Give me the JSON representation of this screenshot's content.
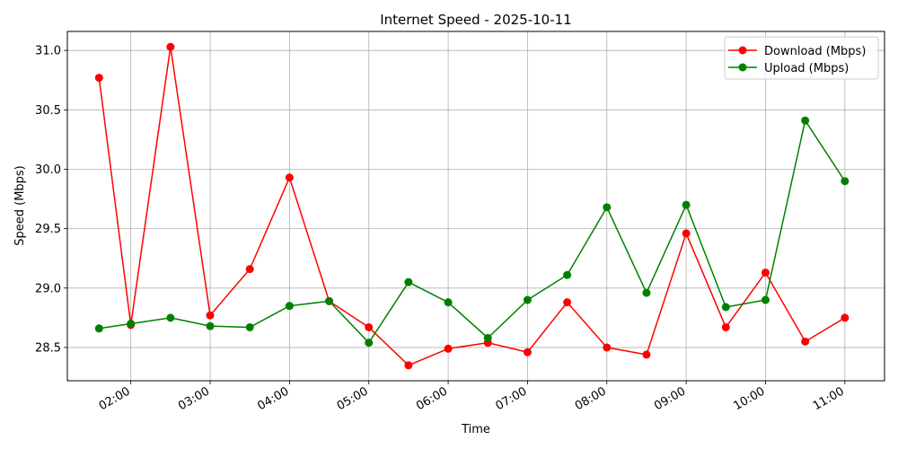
{
  "chart_data": {
    "type": "line",
    "title": "Internet Speed - 2025-10-11",
    "xlabel": "Time",
    "ylabel": "Speed (Mbps)",
    "x": [
      "01:36",
      "02:00",
      "02:30",
      "03:00",
      "03:30",
      "04:00",
      "04:30",
      "05:00",
      "05:30",
      "06:00",
      "06:30",
      "07:00",
      "07:30",
      "08:00",
      "08:30",
      "09:00",
      "09:30",
      "10:00",
      "10:30",
      "11:00"
    ],
    "x_ticks": [
      "02:00",
      "03:00",
      "04:00",
      "05:00",
      "06:00",
      "07:00",
      "08:00",
      "09:00",
      "10:00",
      "11:00"
    ],
    "xlim": [
      "01:12",
      "11:30"
    ],
    "ylim": [
      28.22,
      31.16
    ],
    "y_ticks": [
      "28.5",
      "29.0",
      "29.5",
      "30.0",
      "30.5",
      "31.0"
    ],
    "grid": true,
    "legend_position": "top-right",
    "series": [
      {
        "name": "Download (Mbps)",
        "color": "#ff0000",
        "values": [
          30.77,
          28.69,
          31.03,
          28.77,
          29.16,
          29.93,
          28.89,
          28.67,
          28.35,
          28.49,
          28.54,
          28.46,
          28.88,
          28.5,
          28.44,
          29.46,
          28.67,
          29.13,
          28.55,
          28.75
        ]
      },
      {
        "name": "Upload (Mbps)",
        "color": "#008000",
        "values": [
          28.66,
          28.7,
          28.75,
          28.68,
          28.67,
          28.85,
          28.89,
          28.54,
          29.05,
          28.88,
          28.58,
          28.9,
          29.11,
          29.68,
          28.96,
          29.7,
          28.84,
          28.9,
          30.41,
          29.9
        ]
      }
    ]
  }
}
